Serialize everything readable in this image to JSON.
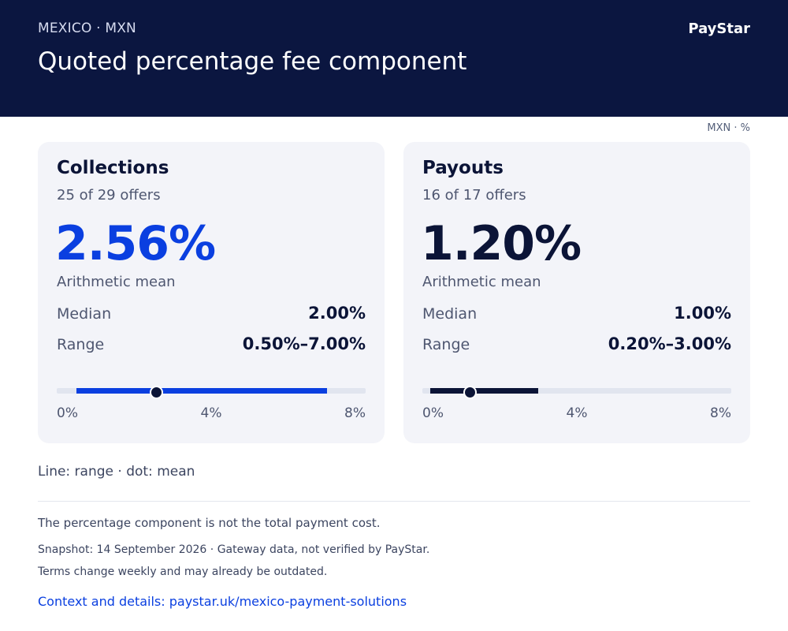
{
  "header": {
    "eyebrow": "MEXICO · MXN",
    "title": "Quoted percentage fee component",
    "brand": "PayStar"
  },
  "unit_note": "MXN · %",
  "colors": {
    "header_bg": "#0b1640",
    "accent_blue": "#0a3fe0",
    "navy": "#0b1437",
    "card_bg": "#f3f4f9"
  },
  "cards": [
    {
      "title": "Collections",
      "subtitle": "25 of 29 offers",
      "mean_value": "2.56%",
      "mean_label": "Arithmetic mean",
      "median_label": "Median",
      "median_value": "2.00%",
      "range_label": "Range",
      "range_value": "0.50%–7.00%",
      "axis_ticks": [
        "0%",
        "4%",
        "8%"
      ],
      "range_bar": {
        "min": 0.5,
        "max": 7.0,
        "mean": 2.56,
        "axis_min": 0,
        "axis_max": 8
      }
    },
    {
      "title": "Payouts",
      "subtitle": "16 of 17 offers",
      "mean_value": "1.20%",
      "mean_label": "Arithmetic mean",
      "median_label": "Median",
      "median_value": "1.00%",
      "range_label": "Range",
      "range_value": "0.20%–3.00%",
      "axis_ticks": [
        "0%",
        "4%",
        "8%"
      ],
      "range_bar": {
        "min": 0.2,
        "max": 3.0,
        "mean": 1.2,
        "axis_min": 0,
        "axis_max": 8
      }
    }
  ],
  "legend_note": "Line: range · dot: mean",
  "footer": {
    "disclaimer": "The percentage component is not the total payment cost.",
    "snapshot": "Snapshot: 14 September 2026 · Gateway data, not verified by PayStar.",
    "terms": "Terms change weekly and may already be outdated.",
    "context_link": "Context and details: paystar.uk/mexico-payment-solutions"
  }
}
